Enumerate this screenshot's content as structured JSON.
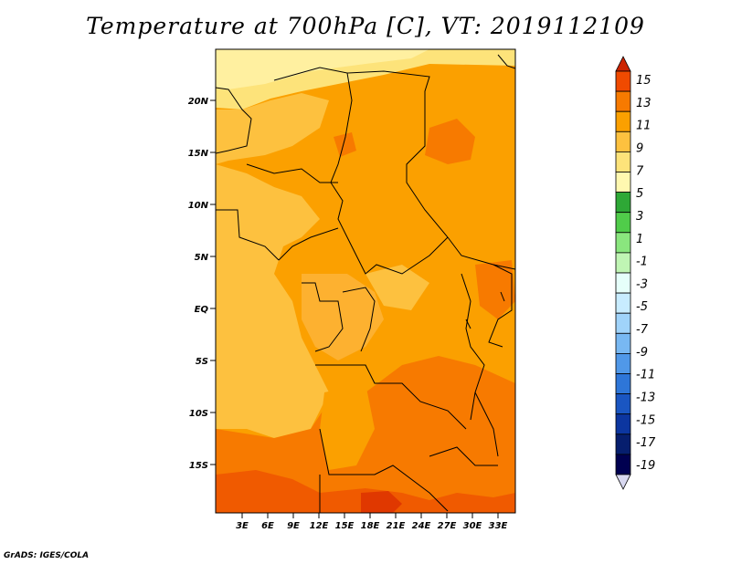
{
  "title": "Temperature at 700hPa [C], VT: 2019112109",
  "credit": "GrADS: IGES/COLA",
  "map": {
    "lat_labels": [
      "20N",
      "15N",
      "10N",
      "5N",
      "EQ",
      "5S",
      "10S",
      "15S"
    ],
    "lon_labels": [
      "3E",
      "6E",
      "9E",
      "12E",
      "15E",
      "18E",
      "21E",
      "24E",
      "27E",
      "30E",
      "33E"
    ]
  },
  "colorbar": {
    "labels": [
      "15",
      "13",
      "11",
      "9",
      "7",
      "5",
      "3",
      "1",
      "-1",
      "-3",
      "-5",
      "-7",
      "-9",
      "-11",
      "-13",
      "-15",
      "-17",
      "-19"
    ],
    "colors": [
      "#cc2400",
      "#f04a00",
      "#f77a00",
      "#fba000",
      "#fdc13f",
      "#fde37a",
      "#fff8b0",
      "#2ea836",
      "#50cc4a",
      "#8ae67e",
      "#c0f5b4",
      "#e6fffa",
      "#c8ecff",
      "#a0d3fa",
      "#78b8f2",
      "#5098e8",
      "#2e76d8",
      "#1a56c2",
      "#0c36a0",
      "#061e6e",
      "#000050",
      "#d8d8f0"
    ]
  }
}
